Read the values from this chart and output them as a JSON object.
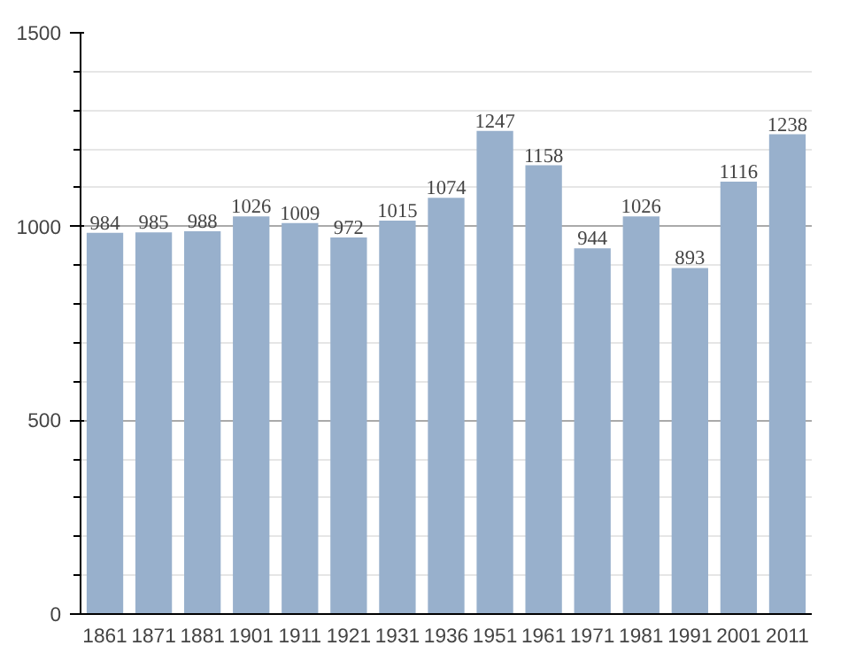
{
  "chart_data": {
    "type": "bar",
    "categories": [
      "1861",
      "1871",
      "1881",
      "1901",
      "1911",
      "1921",
      "1931",
      "1936",
      "1951",
      "1961",
      "1971",
      "1981",
      "1991",
      "2001",
      "2011"
    ],
    "values": [
      984,
      985,
      988,
      1026,
      1009,
      972,
      1015,
      1074,
      1247,
      1158,
      944,
      1026,
      893,
      1116,
      1238
    ],
    "color": "#98b0cc",
    "ylim": [
      0,
      1500
    ],
    "yticks": [
      0,
      500,
      1000,
      1500
    ],
    "grid": "y",
    "data_labels": true
  }
}
